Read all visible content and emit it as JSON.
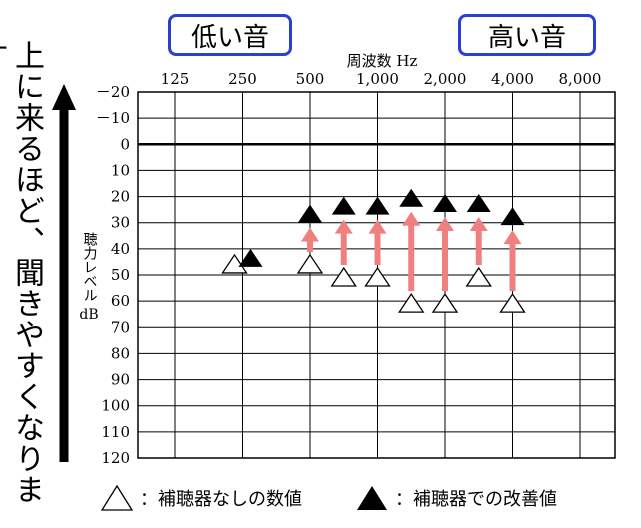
{
  "headers": {
    "low_sound": "低い音",
    "high_sound": "高い音",
    "frequency_label": "周波数 Hz"
  },
  "side_text": "上に来るほど、聞きやすくなります",
  "ylabel": {
    "vertical": "聴力レベル",
    "unit": "dB"
  },
  "legend": {
    "open": "：補聴器なしの数値",
    "filled": "：補聴器での改善値"
  },
  "colors": {
    "arrow": "#f07f7f",
    "pill_border": "#2a3fd6",
    "grid": "#000000"
  },
  "chart_data": {
    "type": "scatter",
    "x_ticks": [
      "125",
      "250",
      "500",
      "1,000",
      "2,000",
      "4,000",
      "8,000"
    ],
    "y_ticks": [
      "－20",
      "－10",
      "0",
      "10",
      "20",
      "30",
      "40",
      "50",
      "60",
      "70",
      "80",
      "90",
      "100",
      "110",
      "120"
    ],
    "ylim": [
      -20,
      120
    ],
    "y_reversed": true,
    "series": [
      {
        "name": "補聴器なしの数値",
        "marker": "open-triangle",
        "points": [
          {
            "freq": 250,
            "db": 45
          },
          {
            "freq": 500,
            "db": 45
          },
          {
            "freq": 707,
            "db": 50
          },
          {
            "freq": 1000,
            "db": 50
          },
          {
            "freq": 1414,
            "db": 60
          },
          {
            "freq": 2000,
            "db": 60
          },
          {
            "freq": 2828,
            "db": 50
          },
          {
            "freq": 4000,
            "db": 60
          }
        ]
      },
      {
        "name": "補聴器での改善値",
        "marker": "filled-triangle",
        "points": [
          {
            "freq": 250,
            "db": 45
          },
          {
            "freq": 500,
            "db": 28
          },
          {
            "freq": 707,
            "db": 25
          },
          {
            "freq": 1000,
            "db": 25
          },
          {
            "freq": 1414,
            "db": 22
          },
          {
            "freq": 2000,
            "db": 24
          },
          {
            "freq": 2828,
            "db": 24
          },
          {
            "freq": 4000,
            "db": 29
          }
        ]
      }
    ]
  }
}
